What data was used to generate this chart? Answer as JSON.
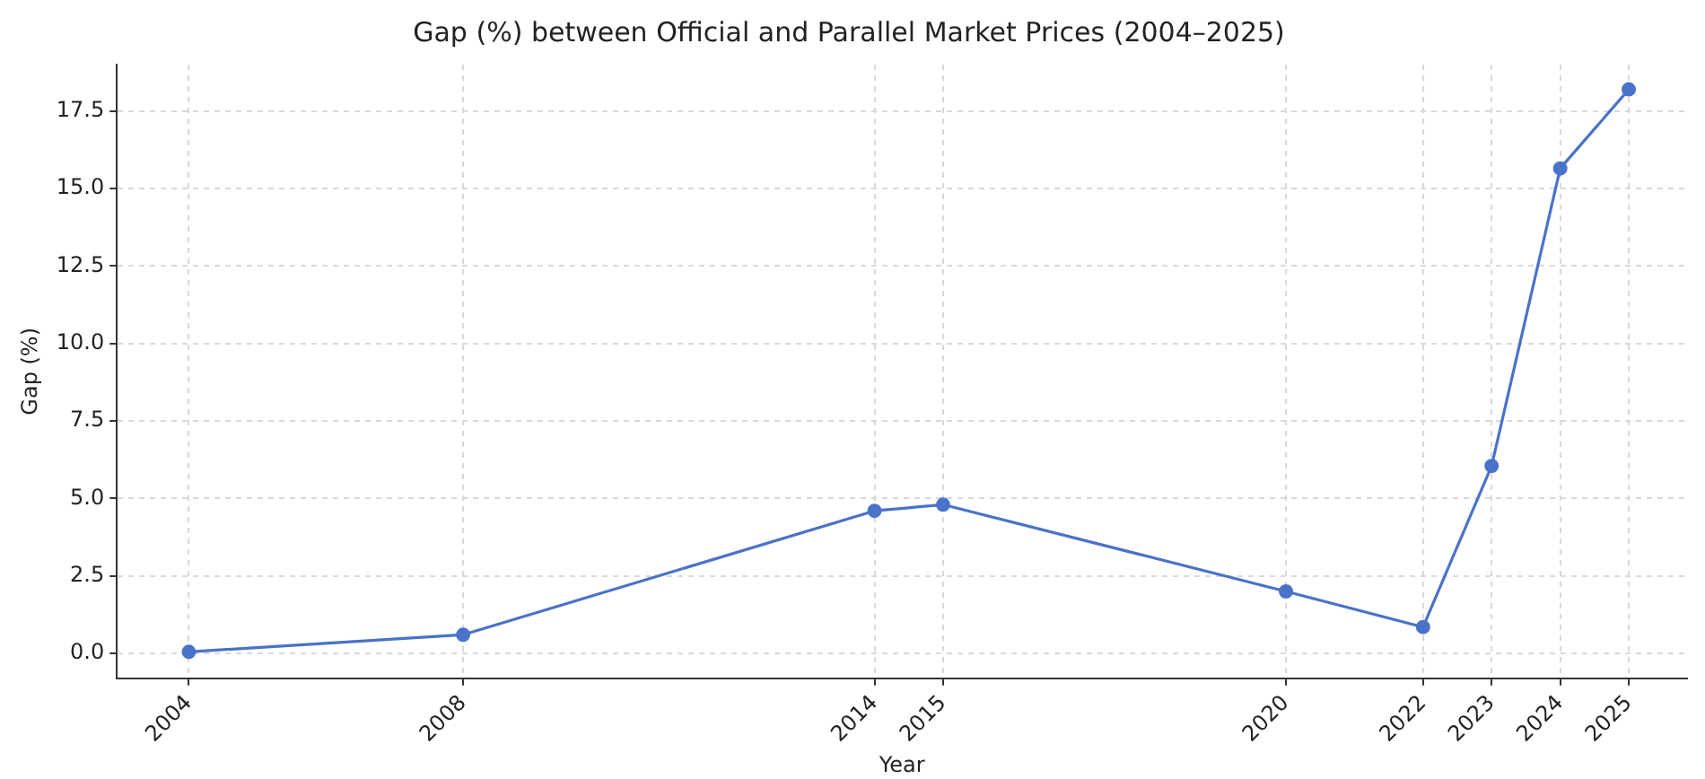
{
  "chart_data": {
    "type": "line",
    "title": "Gap (%) between Official and Parallel Market Prices (2004–2025)",
    "xlabel": "Year",
    "ylabel": "Gap (%)",
    "x": [
      2004,
      2008,
      2014,
      2015,
      2020,
      2022,
      2023,
      2024,
      2025
    ],
    "series": [
      {
        "color": "#4a72c9",
        "values": [
          0.05,
          0.6,
          4.6,
          4.8,
          2.0,
          0.85,
          6.05,
          15.65,
          18.2
        ]
      }
    ],
    "xlim": [
      2002.95,
      2025.85
    ],
    "xticks": [
      2004,
      2008,
      2014,
      2015,
      2020,
      2022,
      2023,
      2024,
      2025
    ],
    "ylim": [
      -0.8,
      19.0
    ],
    "yticks": [
      {
        "value": 0,
        "label": "0.0"
      },
      {
        "value": 2.5,
        "label": "2.5"
      },
      {
        "value": 5,
        "label": "5.0"
      },
      {
        "value": 7.5,
        "label": "7.5"
      },
      {
        "value": 10,
        "label": "10.0"
      },
      {
        "value": 12.5,
        "label": "12.5"
      },
      {
        "value": 15,
        "label": "15.0"
      },
      {
        "value": 17.5,
        "label": "17.5"
      }
    ],
    "grid": true,
    "legend": false,
    "marker": "circle",
    "line_style": "solid"
  }
}
